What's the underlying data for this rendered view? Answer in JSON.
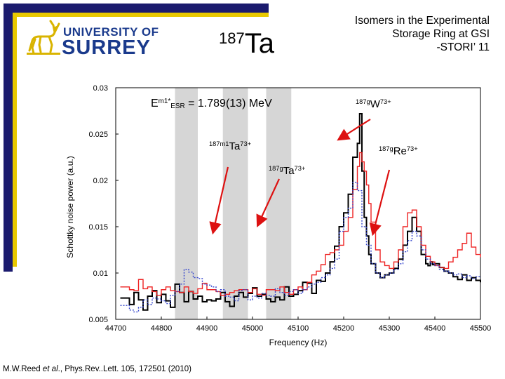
{
  "header": {
    "logo_line1": "UNIVERSITY OF",
    "logo_line2": "SURREY",
    "nuclide_mass": "187",
    "nuclide_symbol": "Ta",
    "talk_title_lines": [
      "Isomers in the Experimental",
      "Storage Ring at GSI",
      "-STORI’ 11"
    ]
  },
  "citation": {
    "authors": "M.W.Reed ",
    "etal": "et al",
    "rest": "., Phys.Rev..Lett. 105, 172501 (2010)"
  },
  "annotations": {
    "energy": {
      "E": "E",
      "sup": "m1*",
      "sub": "ESR",
      "rest": " = 1.789(13) MeV"
    },
    "ta_m1": {
      "sup": "187m1",
      "sym": "Ta",
      "charge": "73+"
    },
    "ta_g": {
      "sup": "187g",
      "sym": "Ta",
      "charge": "73+"
    },
    "w_g": {
      "sup": "187g",
      "sym": "W",
      "charge": "73+"
    },
    "re_g": {
      "sup": "187g",
      "sym": "Re",
      "charge": "73+"
    }
  },
  "colors": {
    "accent_navy": "#1b1b6e",
    "accent_gold": "#e8c800",
    "logo_blue": "#1a3a8c",
    "logo_gold": "#d9b400",
    "arrow_red": "#dd1111",
    "band_gray": "#d6d6d6"
  },
  "chart_data": {
    "type": "line",
    "title": "",
    "xlabel": "Frequency (Hz)",
    "ylabel": "Schottky noise power (a.u.)",
    "xlim": [
      44700,
      45500
    ],
    "ylim": [
      0.005,
      0.03
    ],
    "xticks": [
      44700,
      44800,
      44900,
      45000,
      45100,
      45200,
      45300,
      45400,
      45500
    ],
    "yticks": [
      0.005,
      0.01,
      0.015,
      0.02,
      0.025,
      0.03
    ],
    "shaded_bands": [
      [
        44830,
        44880
      ],
      [
        44935,
        44990
      ],
      [
        45030,
        45085
      ]
    ],
    "series": [
      {
        "color": "#000000",
        "style": "solid",
        "x": [
          44710,
          44730,
          44740,
          44750,
          44760,
          44770,
          44780,
          44790,
          44800,
          44810,
          44820,
          44830,
          44840,
          44850,
          44860,
          44870,
          44880,
          44890,
          44900,
          44910,
          44920,
          44930,
          44940,
          44950,
          44960,
          44970,
          44980,
          44990,
          45000,
          45010,
          45020,
          45030,
          45040,
          45050,
          45060,
          45070,
          45080,
          45090,
          45100,
          45110,
          45120,
          45130,
          45140,
          45150,
          45160,
          45170,
          45180,
          45190,
          45200,
          45210,
          45220,
          45230,
          45235,
          45240,
          45245,
          45250,
          45255,
          45260,
          45270,
          45280,
          45290,
          45300,
          45310,
          45320,
          45330,
          45340,
          45350,
          45360,
          45370,
          45380,
          45385,
          45390,
          45395,
          45400,
          45410,
          45420,
          45430,
          45440,
          45450,
          45460,
          45470,
          45480,
          45490,
          45500
        ],
        "y": [
          0.0073,
          0.0066,
          0.0079,
          0.0071,
          0.006,
          0.0075,
          0.0081,
          0.0068,
          0.0077,
          0.007,
          0.0063,
          0.0088,
          0.0079,
          0.0069,
          0.008,
          0.0072,
          0.0075,
          0.0069,
          0.0071,
          0.007,
          0.0072,
          0.0079,
          0.0069,
          0.0064,
          0.0075,
          0.0079,
          0.0074,
          0.0078,
          0.0084,
          0.0075,
          0.0077,
          0.0072,
          0.0069,
          0.0074,
          0.0071,
          0.0085,
          0.0075,
          0.0077,
          0.0081,
          0.009,
          0.0089,
          0.0078,
          0.0092,
          0.0091,
          0.01,
          0.0112,
          0.0129,
          0.015,
          0.0165,
          0.0185,
          0.0225,
          0.024,
          0.0272,
          0.021,
          0.016,
          0.014,
          0.012,
          0.011,
          0.01,
          0.0095,
          0.0098,
          0.01,
          0.0105,
          0.0115,
          0.013,
          0.0145,
          0.016,
          0.0145,
          0.012,
          0.011,
          0.0108,
          0.0112,
          0.0109,
          0.011,
          0.0106,
          0.0102,
          0.01,
          0.0096,
          0.0093,
          0.0098,
          0.0092,
          0.0095,
          0.0092,
          0.009
        ]
      },
      {
        "color": "#ee2222",
        "style": "solid",
        "x": [
          44710,
          44730,
          44740,
          44750,
          44760,
          44770,
          44780,
          44790,
          44800,
          44810,
          44820,
          44830,
          44840,
          44850,
          44860,
          44870,
          44880,
          44890,
          44900,
          44910,
          44920,
          44930,
          44940,
          44950,
          44960,
          44970,
          44980,
          44990,
          45000,
          45010,
          45020,
          45030,
          45040,
          45050,
          45060,
          45070,
          45080,
          45090,
          45100,
          45110,
          45120,
          45130,
          45140,
          45150,
          45160,
          45170,
          45180,
          45190,
          45200,
          45210,
          45220,
          45230,
          45235,
          45240,
          45245,
          45250,
          45255,
          45260,
          45270,
          45280,
          45290,
          45300,
          45310,
          45320,
          45330,
          45340,
          45350,
          45360,
          45370,
          45380,
          45390,
          45400,
          45410,
          45420,
          45430,
          45440,
          45450,
          45460,
          45470,
          45480,
          45490,
          45500
        ],
        "y": [
          0.0085,
          0.0082,
          0.0081,
          0.0093,
          0.0083,
          0.0085,
          0.008,
          0.0076,
          0.0082,
          0.0085,
          0.0081,
          0.008,
          0.0079,
          0.0085,
          0.008,
          0.0078,
          0.0083,
          0.0089,
          0.0082,
          0.0082,
          0.008,
          0.0076,
          0.0077,
          0.0079,
          0.0081,
          0.0082,
          0.0082,
          0.0079,
          0.0083,
          0.0077,
          0.0076,
          0.0082,
          0.0082,
          0.0081,
          0.0085,
          0.0079,
          0.0077,
          0.0082,
          0.0085,
          0.0082,
          0.009,
          0.0098,
          0.0102,
          0.0109,
          0.012,
          0.0122,
          0.0125,
          0.013,
          0.0145,
          0.016,
          0.019,
          0.0215,
          0.023,
          0.022,
          0.021,
          0.0195,
          0.0175,
          0.0155,
          0.0125,
          0.0112,
          0.0108,
          0.0105,
          0.0112,
          0.0125,
          0.015,
          0.0165,
          0.0168,
          0.015,
          0.013,
          0.0118,
          0.0112,
          0.0108,
          0.0106,
          0.0105,
          0.0112,
          0.0117,
          0.0125,
          0.0132,
          0.0143,
          0.0128,
          0.012,
          0.0117
        ]
      },
      {
        "color": "#3344cc",
        "style": "dotted",
        "x": [
          44710,
          44730,
          44740,
          44750,
          44760,
          44770,
          44780,
          44790,
          44800,
          44810,
          44820,
          44830,
          44840,
          44850,
          44860,
          44870,
          44880,
          44890,
          44900,
          44910,
          44920,
          44930,
          44940,
          44950,
          44960,
          44970,
          44980,
          44990,
          45000,
          45010,
          45020,
          45030,
          45040,
          45050,
          45060,
          45070,
          45080,
          45090,
          45100,
          45110,
          45120,
          45130,
          45140,
          45150,
          45160,
          45170,
          45180,
          45190,
          45200,
          45210,
          45220,
          45230,
          45240,
          45250,
          45260,
          45270,
          45280,
          45290,
          45300,
          45310,
          45320,
          45330,
          45340,
          45350,
          45360,
          45370,
          45380,
          45390,
          45400,
          45410,
          45420,
          45430,
          45440,
          45450,
          45460,
          45470,
          45480,
          45490,
          45500
        ],
        "y": [
          0.0065,
          0.006,
          0.0058,
          0.0063,
          0.0071,
          0.0066,
          0.0073,
          0.0072,
          0.007,
          0.0067,
          0.0076,
          0.008,
          0.0088,
          0.0104,
          0.0101,
          0.0095,
          0.0094,
          0.0088,
          0.0087,
          0.0085,
          0.008,
          0.0082,
          0.0075,
          0.0074,
          0.007,
          0.0081,
          0.0082,
          0.0071,
          0.0075,
          0.0073,
          0.0078,
          0.0076,
          0.0075,
          0.0083,
          0.0079,
          0.0076,
          0.008,
          0.0082,
          0.0078,
          0.0082,
          0.0085,
          0.0088,
          0.009,
          0.0095,
          0.0098,
          0.0105,
          0.0115,
          0.0145,
          0.016,
          0.017,
          0.0198,
          0.0189,
          0.015,
          0.013,
          0.011,
          0.01,
          0.0095,
          0.0098,
          0.01,
          0.0104,
          0.011,
          0.0123,
          0.0135,
          0.0145,
          0.014,
          0.0125,
          0.0115,
          0.011,
          0.0108,
          0.0104,
          0.0102,
          0.01,
          0.0098,
          0.0099,
          0.0095,
          0.0097,
          0.0094,
          0.0096,
          0.0095
        ]
      }
    ]
  }
}
